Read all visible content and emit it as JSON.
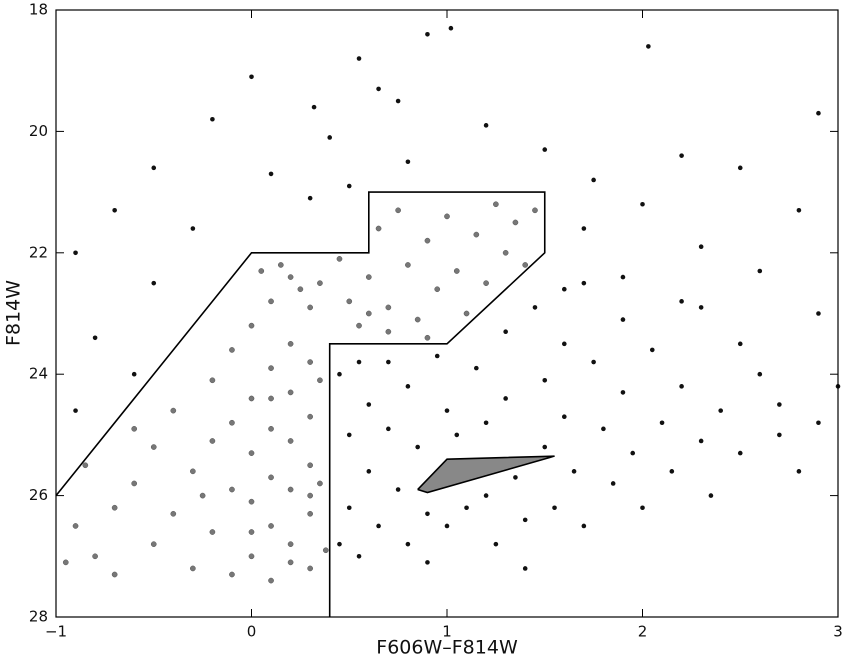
{
  "chart_data": {
    "type": "scatter",
    "x_label": "F606W–F814W",
    "y_label": "F814W",
    "xlim": [
      -1,
      3
    ],
    "ylim": [
      28,
      18
    ],
    "xticks": [
      {
        "value": -1,
        "label": "−1"
      },
      0,
      1,
      2,
      3
    ],
    "yticks": [
      18,
      20,
      22,
      24,
      26,
      28
    ],
    "series": [
      {
        "color": "#777777",
        "x": [
          -0.9,
          -0.8,
          -0.7,
          -0.6,
          -0.5,
          -0.5,
          -0.4,
          -0.4,
          -0.3,
          -0.3,
          -0.2,
          -0.2,
          -0.2,
          -0.1,
          -0.1,
          -0.1,
          -0.1,
          0,
          0,
          0,
          0,
          0,
          0.1,
          0.1,
          0.1,
          0.1,
          0.1,
          0.1,
          0.2,
          0.2,
          0.2,
          0.2,
          0.2,
          0.2,
          0.3,
          0.3,
          0.3,
          0.3,
          0.3,
          0.3,
          0.35,
          0.35,
          0.38,
          0.05,
          0.15,
          0.25,
          0.35,
          0.45,
          0.5,
          0.55,
          0.6,
          0.65,
          0.7,
          0.75,
          0.8,
          0.85,
          0.9,
          0.95,
          1,
          1.05,
          1.1,
          1.15,
          1.2,
          1.25,
          1.3,
          1.35,
          1.4,
          1.45,
          0.7,
          0.9,
          0.6,
          -0.7,
          -0.95,
          -0.85,
          -0.6,
          0,
          -0.25,
          0.2,
          0.3,
          0.1
        ],
        "values": [
          26.5,
          27,
          26.2,
          25.8,
          26.8,
          25.2,
          24.6,
          26.3,
          25.6,
          27.2,
          24.1,
          25.1,
          26.6,
          23.6,
          24.8,
          25.9,
          27.3,
          23.2,
          24.4,
          25.3,
          26.1,
          27,
          22.8,
          23.9,
          24.9,
          25.7,
          26.5,
          27.4,
          22.4,
          23.5,
          24.3,
          25.1,
          25.9,
          26.8,
          22.9,
          23.8,
          24.7,
          25.5,
          26.3,
          27.2,
          24.1,
          25.8,
          26.9,
          22.3,
          22.2,
          22.6,
          22.5,
          22.1,
          22.8,
          23.2,
          22.4,
          21.6,
          22.9,
          21.3,
          22.2,
          23.1,
          21.8,
          22.6,
          21.4,
          22.3,
          23,
          21.7,
          22.5,
          21.2,
          22,
          21.5,
          22.2,
          21.3,
          23.3,
          23.4,
          23,
          27.3,
          27.1,
          25.5,
          24.9,
          26.6,
          26,
          27.1,
          26,
          24.4
        ]
      },
      {
        "color": "#111111",
        "x": [
          0.9,
          1.02,
          2.03,
          0.55,
          0,
          0.65,
          0.32,
          -0.2,
          0.75,
          1.2,
          2.9,
          0.4,
          1.5,
          2.2,
          -0.5,
          0.1,
          0.8,
          1.75,
          2.5,
          -0.7,
          0.3,
          2,
          2.8,
          -0.9,
          -0.5,
          1.7,
          2.3,
          2.6,
          -0.8,
          -0.6,
          -0.9,
          2.9,
          3,
          2.7,
          2.5,
          2.2,
          1.9,
          1.6,
          -0.3,
          0.5,
          0.45,
          0.5,
          0.5,
          0.55,
          0.6,
          0.6,
          0.65,
          0.7,
          0.7,
          0.75,
          0.8,
          0.8,
          0.85,
          0.9,
          0.95,
          1,
          1,
          1.05,
          1.1,
          1.15,
          1.2,
          1.2,
          1.25,
          1.3,
          1.3,
          1.35,
          1.4,
          1.45,
          1.5,
          1.5,
          1.55,
          1.6,
          1.6,
          1.65,
          1.7,
          1.75,
          1.8,
          1.85,
          1.9,
          1.95,
          2,
          2.05,
          2.1,
          2.15,
          2.2,
          2.3,
          2.35,
          2.4,
          2.5,
          2.6,
          2.7,
          2.8,
          2.9,
          0.45,
          0.55,
          0.9,
          1.4,
          1.7,
          1.9,
          2.3
        ],
        "values": [
          18.4,
          18.3,
          18.6,
          18.8,
          19.1,
          19.3,
          19.6,
          19.8,
          19.5,
          19.9,
          19.7,
          20.1,
          20.3,
          20.4,
          20.6,
          20.7,
          20.5,
          20.8,
          20.6,
          21.3,
          21.1,
          21.2,
          21.3,
          22,
          22.5,
          21.6,
          21.9,
          22.3,
          23.4,
          24,
          24.6,
          23,
          24.2,
          24.5,
          23.5,
          22.8,
          22.4,
          22.6,
          21.6,
          20.9,
          24,
          25,
          26.2,
          27,
          24.5,
          25.6,
          26.5,
          23.8,
          24.9,
          25.9,
          26.8,
          24.2,
          25.2,
          26.3,
          23.7,
          24.6,
          26.5,
          25,
          26.2,
          23.9,
          24.8,
          26,
          26.8,
          23.3,
          24.4,
          25.7,
          26.4,
          22.9,
          24.1,
          25.2,
          26.2,
          23.5,
          24.7,
          25.6,
          26.5,
          23.8,
          24.9,
          25.8,
          24.3,
          25.3,
          26.2,
          23.6,
          24.8,
          25.6,
          24.2,
          25.1,
          26,
          24.6,
          25.3,
          24,
          25,
          25.6,
          24.8,
          26.8,
          23.8,
          27.1,
          27.2,
          22.5,
          23.1,
          22.9
        ]
      }
    ],
    "boundaries": [
      {
        "color": "#000000",
        "x": [
          -1,
          0,
          0.6,
          0.6,
          1.5,
          1.5,
          1,
          0.4,
          0.4
        ],
        "y": [
          26,
          22,
          22,
          21,
          21,
          22,
          23.5,
          23.5,
          28
        ]
      },
      {
        "color": "#000000",
        "fill": "#888888",
        "x": [
          0.85,
          1,
          1.55,
          0.9,
          0.85
        ],
        "y": [
          25.9,
          25.4,
          25.35,
          25.95,
          25.9
        ]
      }
    ]
  }
}
